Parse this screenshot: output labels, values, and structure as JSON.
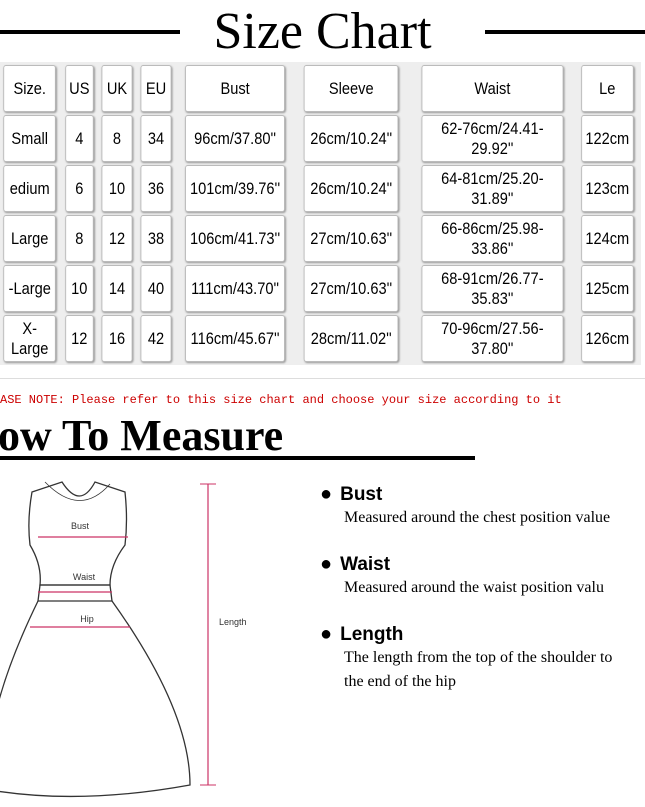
{
  "header": {
    "title": "Size Chart"
  },
  "table": {
    "columns": [
      "Size.",
      "US",
      "UK",
      "EU",
      "Bust",
      "Sleeve",
      "Waist",
      "Le"
    ],
    "rows": [
      [
        "Small",
        "4",
        "8",
        "34",
        "96cm/37.80''",
        "26cm/10.24''",
        "62-76cm/24.41-29.92''",
        "122cm"
      ],
      [
        "edium",
        "6",
        "10",
        "36",
        "101cm/39.76''",
        "26cm/10.24''",
        "64-81cm/25.20-31.89''",
        "123cm"
      ],
      [
        "Large",
        "8",
        "12",
        "38",
        "106cm/41.73''",
        "27cm/10.63''",
        "66-86cm/25.98-33.86''",
        "124cm"
      ],
      [
        "-Large",
        "10",
        "14",
        "40",
        "111cm/43.70''",
        "27cm/10.63''",
        "68-91cm/26.77-35.83''",
        "125cm"
      ],
      [
        "X-Large",
        "12",
        "16",
        "42",
        "116cm/45.67''",
        "28cm/11.02''",
        "70-96cm/27.56-37.80''",
        "126cm"
      ]
    ]
  },
  "note": "ASE NOTE: Please refer to this size chart and choose your size according to it",
  "measure": {
    "title": "ow To Measure"
  },
  "figure": {
    "labels": [
      "Bust",
      "Waist",
      "Hip",
      "Length"
    ]
  },
  "items": [
    {
      "label": "Bust",
      "lines": [
        "Measured around the chest position value"
      ]
    },
    {
      "label": "Waist",
      "lines": [
        "Measured around the waist position valu"
      ]
    },
    {
      "label": "Length",
      "lines": [
        "The length from the top of the shoulder to",
        "the end of the hip"
      ]
    }
  ]
}
